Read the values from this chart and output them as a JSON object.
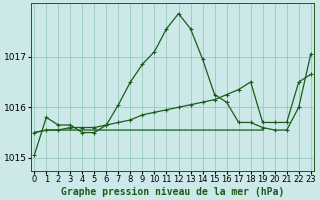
{
  "title": "Graphe pression niveau de la mer (hPa)",
  "bg_color": "#cce8e8",
  "grid_color": "#99ccbb",
  "line_color": "#1a5c1a",
  "xlim": [
    -0.3,
    23.3
  ],
  "ylim": [
    1014.75,
    1018.05
  ],
  "yticks": [
    1015,
    1016,
    1017
  ],
  "xticks": [
    0,
    1,
    2,
    3,
    4,
    5,
    6,
    7,
    8,
    9,
    10,
    11,
    12,
    13,
    14,
    15,
    16,
    17,
    18,
    19,
    20,
    21,
    22,
    23
  ],
  "series1_x": [
    0,
    1,
    2,
    3,
    4,
    5,
    6,
    7,
    8,
    9,
    10,
    11,
    12,
    13,
    14,
    15,
    16,
    17,
    18,
    19,
    20,
    21,
    22,
    23
  ],
  "series1_y": [
    1015.05,
    1015.8,
    1015.65,
    1015.65,
    1015.5,
    1015.5,
    1015.65,
    1016.05,
    1016.5,
    1016.85,
    1017.1,
    1017.55,
    1017.85,
    1017.55,
    1016.95,
    1016.25,
    1016.1,
    1015.7,
    1015.7,
    1015.6,
    1015.55,
    1015.55,
    1016.0,
    1017.05
  ],
  "series2_x": [
    0,
    1,
    2,
    3,
    4,
    5,
    6,
    7,
    8,
    9,
    10,
    11,
    12,
    13,
    14,
    15,
    16,
    17,
    18,
    19,
    20,
    21,
    22,
    23
  ],
  "series2_y": [
    1015.5,
    1015.55,
    1015.55,
    1015.6,
    1015.6,
    1015.6,
    1015.65,
    1015.7,
    1015.75,
    1015.85,
    1015.9,
    1015.95,
    1016.0,
    1016.05,
    1016.1,
    1016.15,
    1016.25,
    1016.35,
    1016.5,
    1015.7,
    1015.7,
    1015.7,
    1016.5,
    1016.65
  ],
  "series3_x": [
    0,
    1,
    2,
    3,
    4,
    5,
    6,
    7,
    8,
    9,
    10,
    11,
    12,
    13,
    14,
    15,
    16,
    17,
    18,
    19
  ],
  "series3_y": [
    1015.5,
    1015.55,
    1015.55,
    1015.55,
    1015.55,
    1015.55,
    1015.55,
    1015.55,
    1015.55,
    1015.55,
    1015.55,
    1015.55,
    1015.55,
    1015.55,
    1015.55,
    1015.55,
    1015.55,
    1015.55,
    1015.55,
    1015.55
  ],
  "xlabel_fontsize": 6,
  "ylabel_fontsize": 6.5,
  "title_fontsize": 7
}
